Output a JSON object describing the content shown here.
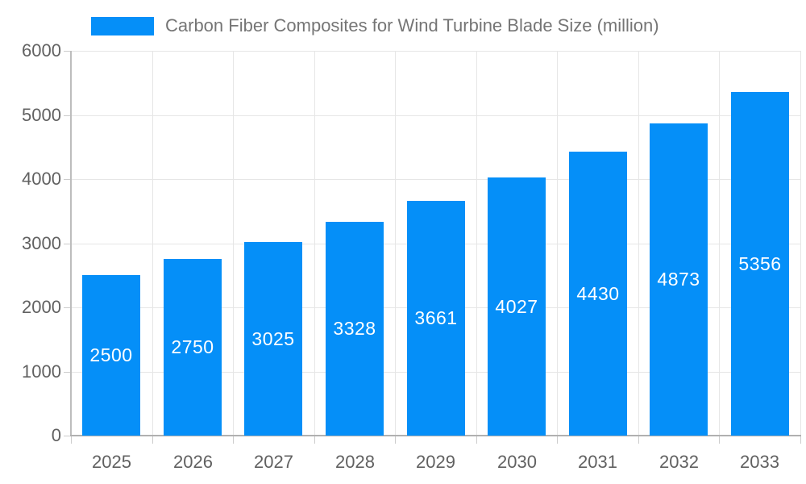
{
  "chart_data": {
    "type": "bar",
    "title": "Carbon Fiber Composites for Wind Turbine Blade Size (million)",
    "categories": [
      "2025",
      "2026",
      "2027",
      "2028",
      "2029",
      "2030",
      "2031",
      "2032",
      "2033"
    ],
    "values": [
      2500,
      2750,
      3025,
      3328,
      3661,
      4027,
      4430,
      4873,
      5356
    ],
    "value_labels": [
      "2500",
      "2750",
      "3025",
      "3328",
      "3661",
      "4027",
      "4430",
      "4873",
      "5356"
    ],
    "xlabel": "",
    "ylabel": "",
    "ylim": [
      0,
      6000
    ],
    "yticks": [
      0,
      1000,
      2000,
      3000,
      4000,
      5000,
      6000
    ],
    "ytick_labels": [
      "0",
      "1000",
      "2000",
      "3000",
      "4000",
      "5000",
      "6000"
    ],
    "grid": true,
    "legend_position": "top-left",
    "value_label_position": "inside-center"
  },
  "colors": {
    "bar": "#058FF8",
    "grid": "#e6e6e6",
    "axis_line": "#b0b0b0",
    "yaxis_line": "#bdbdbd",
    "tick_mark": "#cccccc",
    "tick_label": "#616161",
    "legend_text": "#757575",
    "value_label": "#ffffff",
    "background": "#ffffff"
  }
}
